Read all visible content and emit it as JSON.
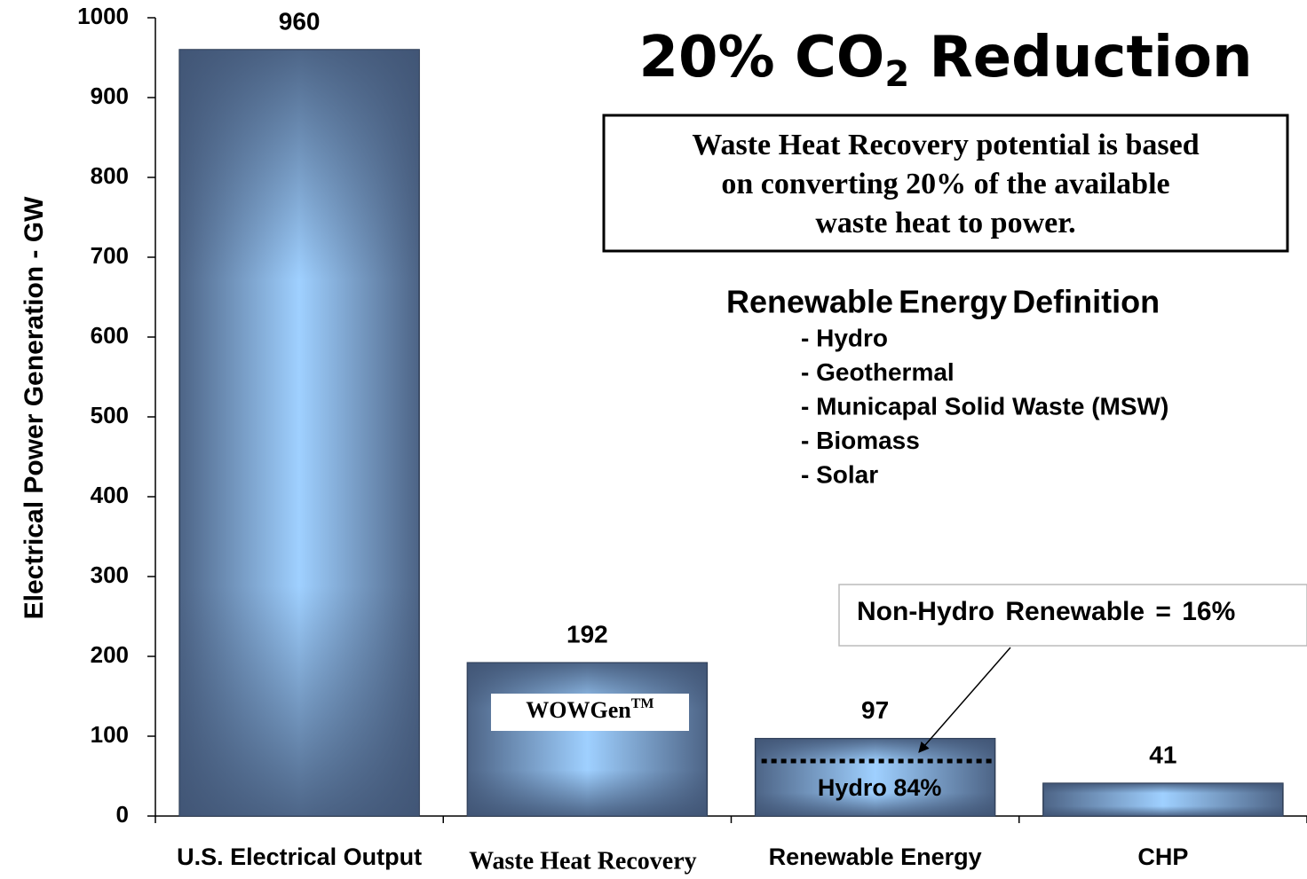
{
  "chart_data": {
    "type": "bar",
    "title": {
      "pre": "20% CO",
      "sub": "2",
      "post": " Reduction"
    },
    "y_label": "Electrical Power Generation - GW",
    "categories": [
      "U.S. Electrical Output",
      "Waste Heat Recovery",
      "Renewable Energy",
      "CHP"
    ],
    "values": [
      960,
      192,
      97,
      41
    ],
    "color": "#4d6486",
    "highlight_color": "#9fd0ff",
    "ylim": [
      0,
      1000
    ],
    "yticks": [
      0,
      100,
      200,
      300,
      400,
      500,
      600,
      700,
      800,
      900,
      1000
    ],
    "grid": false,
    "note": [
      "Waste Heat Recovery potential is based",
      "on converting 20% of the available",
      "waste heat to power."
    ],
    "renewable": {
      "heading": "Renewable Energy Definition",
      "items": [
        "- Hydro",
        "- Geothermal",
        "- Municapal Solid Waste (MSW)",
        "- Biomass",
        "- Solar"
      ]
    },
    "callout": "Non-Hydro Renewable = 16%",
    "hydro_label": "Hydro 84%",
    "wowgen": {
      "text": "WOWGen",
      "sup": "TM"
    }
  }
}
